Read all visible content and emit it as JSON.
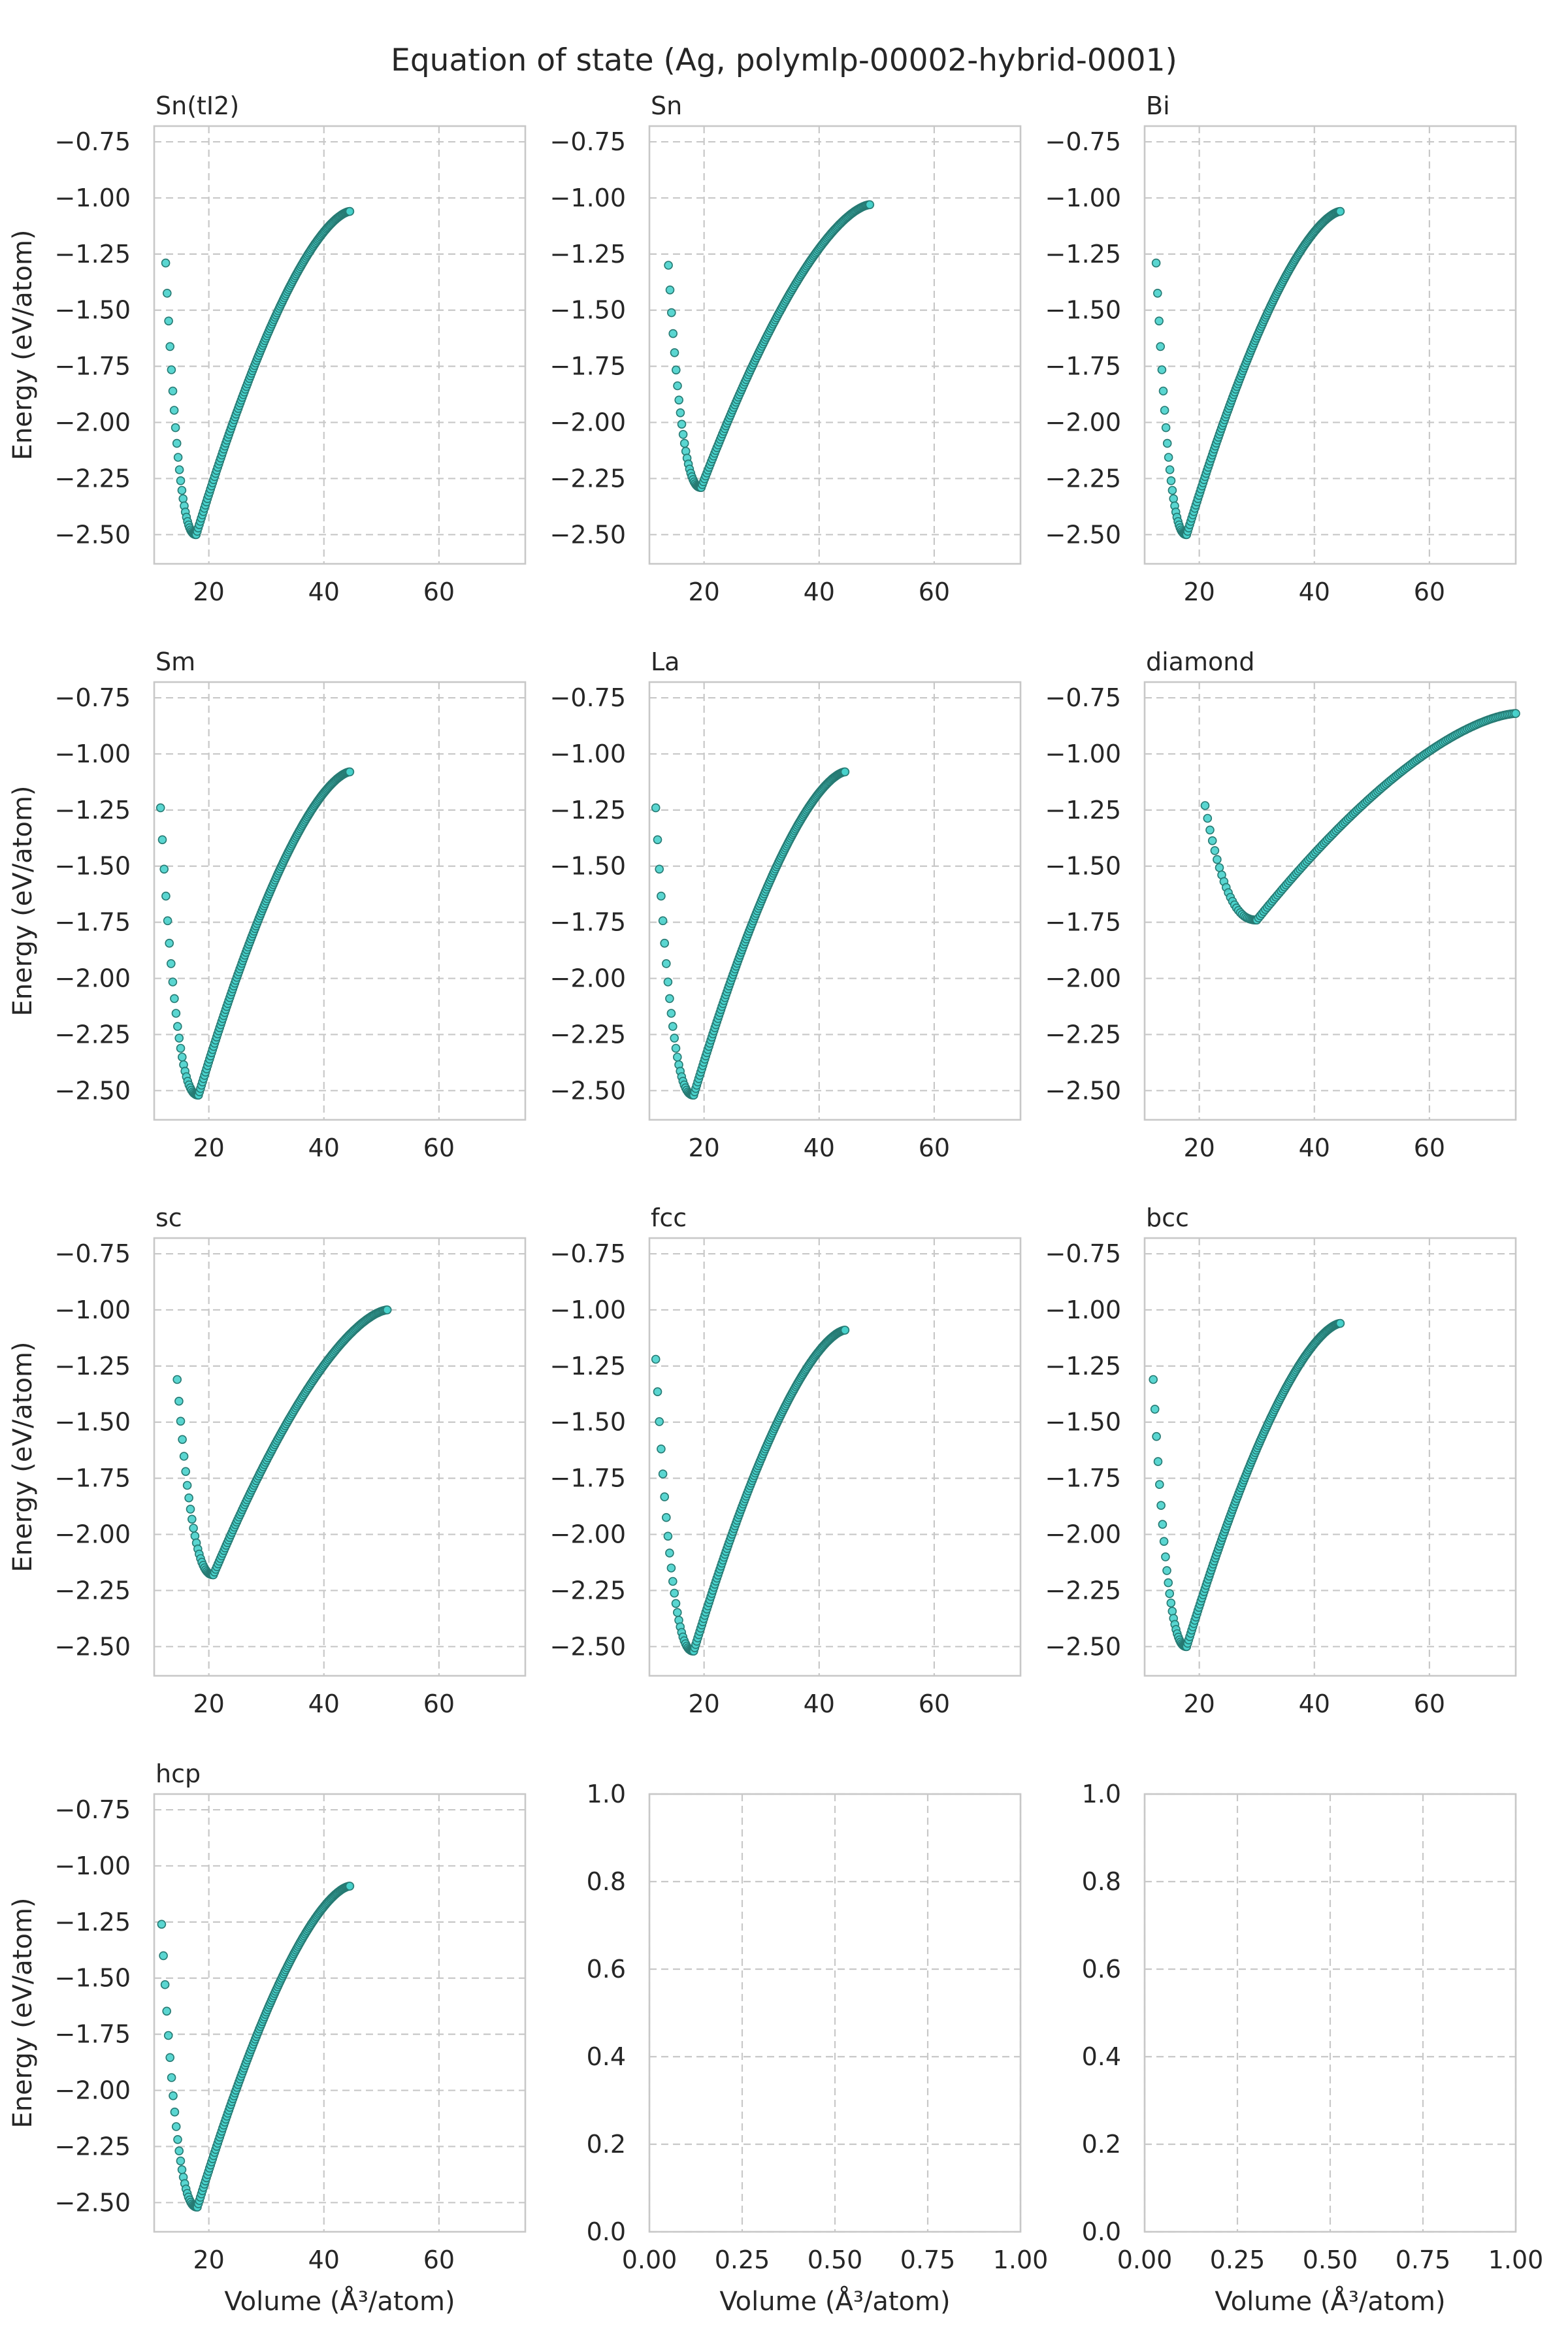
{
  "title": "Equation of state (Ag, polymlp-00002-hybrid-0001)",
  "colors": {
    "marker": "#48d1cc",
    "marker_edge": "#267a73",
    "grid": "#c8c8c8",
    "spine": "#c8c8c8",
    "text": "#262626"
  },
  "chart_data": [
    {
      "type": "scatter",
      "title": "Sn(tI2)",
      "ylabel": "Energy (eV/atom)",
      "xlabel": "",
      "xlim": [
        10.5,
        75
      ],
      "ylim": [
        -2.63,
        -0.68
      ],
      "xticks": [
        "20",
        "40",
        "60"
      ],
      "yticks": [
        "−0.75",
        "−1.00",
        "−1.25",
        "−1.50",
        "−1.75",
        "−2.00",
        "−2.25",
        "−2.50"
      ],
      "grid": true,
      "curve": {
        "v_start": 12.5,
        "v_min": 17.8,
        "v_end": 44.5,
        "e_start": -1.29,
        "e_min": -2.5,
        "e_end": -1.06
      }
    },
    {
      "type": "scatter",
      "title": "Sn",
      "ylabel": "",
      "xlabel": "",
      "xlim": [
        10.5,
        75
      ],
      "ylim": [
        -2.63,
        -0.68
      ],
      "xticks": [
        "20",
        "40",
        "60"
      ],
      "yticks": [
        "−0.75",
        "−1.00",
        "−1.25",
        "−1.50",
        "−1.75",
        "−2.00",
        "−2.25",
        "−2.50"
      ],
      "grid": true,
      "curve": {
        "v_start": 13.8,
        "v_min": 19.5,
        "v_end": 48.8,
        "e_start": -1.3,
        "e_min": -2.29,
        "e_end": -1.03
      }
    },
    {
      "type": "scatter",
      "title": "Bi",
      "ylabel": "",
      "xlabel": "",
      "xlim": [
        10.5,
        75
      ],
      "ylim": [
        -2.63,
        -0.68
      ],
      "xticks": [
        "20",
        "40",
        "60"
      ],
      "yticks": [
        "−0.75",
        "−1.00",
        "−1.25",
        "−1.50",
        "−1.75",
        "−2.00",
        "−2.25",
        "−2.50"
      ],
      "grid": true,
      "curve": {
        "v_start": 12.5,
        "v_min": 17.8,
        "v_end": 44.5,
        "e_start": -1.29,
        "e_min": -2.5,
        "e_end": -1.06
      }
    },
    {
      "type": "scatter",
      "title": "Sm",
      "ylabel": "Energy (eV/atom)",
      "xlabel": "",
      "xlim": [
        10.5,
        75
      ],
      "ylim": [
        -2.63,
        -0.68
      ],
      "xticks": [
        "20",
        "40",
        "60"
      ],
      "yticks": [
        "−0.75",
        "−1.00",
        "−1.25",
        "−1.50",
        "−1.75",
        "−2.00",
        "−2.25",
        "−2.50"
      ],
      "grid": true,
      "curve": {
        "v_start": 11.6,
        "v_min": 18.2,
        "v_end": 44.5,
        "e_start": -1.24,
        "e_min": -2.52,
        "e_end": -1.08
      }
    },
    {
      "type": "scatter",
      "title": "La",
      "ylabel": "",
      "xlabel": "",
      "xlim": [
        10.5,
        75
      ],
      "ylim": [
        -2.63,
        -0.68
      ],
      "xticks": [
        "20",
        "40",
        "60"
      ],
      "yticks": [
        "−0.75",
        "−1.00",
        "−1.25",
        "−1.50",
        "−1.75",
        "−2.00",
        "−2.25",
        "−2.50"
      ],
      "grid": true,
      "curve": {
        "v_start": 11.6,
        "v_min": 18.2,
        "v_end": 44.5,
        "e_start": -1.24,
        "e_min": -2.52,
        "e_end": -1.08
      }
    },
    {
      "type": "scatter",
      "title": "diamond",
      "ylabel": "",
      "xlabel": "",
      "xlim": [
        10.5,
        75
      ],
      "ylim": [
        -2.63,
        -0.68
      ],
      "xticks": [
        "20",
        "40",
        "60"
      ],
      "yticks": [
        "−0.75",
        "−1.00",
        "−1.25",
        "−1.50",
        "−1.75",
        "−2.00",
        "−2.25",
        "−2.50"
      ],
      "grid": true,
      "curve": {
        "v_start": 21.0,
        "v_min": 30.0,
        "v_end": 75.0,
        "e_start": -1.23,
        "e_min": -1.74,
        "e_end": -0.82
      }
    },
    {
      "type": "scatter",
      "title": "sc",
      "ylabel": "Energy (eV/atom)",
      "xlabel": "",
      "xlim": [
        10.5,
        75
      ],
      "ylim": [
        -2.63,
        -0.68
      ],
      "xticks": [
        "20",
        "40",
        "60"
      ],
      "yticks": [
        "−0.75",
        "−1.00",
        "−1.25",
        "−1.50",
        "−1.75",
        "−2.00",
        "−2.25",
        "−2.50"
      ],
      "grid": true,
      "curve": {
        "v_start": 14.5,
        "v_min": 20.8,
        "v_end": 51.0,
        "e_start": -1.31,
        "e_min": -2.18,
        "e_end": -1.0
      }
    },
    {
      "type": "scatter",
      "title": "fcc",
      "ylabel": "",
      "xlabel": "",
      "xlim": [
        10.5,
        75
      ],
      "ylim": [
        -2.63,
        -0.68
      ],
      "xticks": [
        "20",
        "40",
        "60"
      ],
      "yticks": [
        "−0.75",
        "−1.00",
        "−1.25",
        "−1.50",
        "−1.75",
        "−2.00",
        "−2.25",
        "−2.50"
      ],
      "grid": true,
      "curve": {
        "v_start": 11.6,
        "v_min": 18.2,
        "v_end": 44.5,
        "e_start": -1.22,
        "e_min": -2.52,
        "e_end": -1.09
      }
    },
    {
      "type": "scatter",
      "title": "bcc",
      "ylabel": "",
      "xlabel": "",
      "xlim": [
        10.5,
        75
      ],
      "ylim": [
        -2.63,
        -0.68
      ],
      "xticks": [
        "20",
        "40",
        "60"
      ],
      "yticks": [
        "−0.75",
        "−1.00",
        "−1.25",
        "−1.50",
        "−1.75",
        "−2.00",
        "−2.25",
        "−2.50"
      ],
      "grid": true,
      "curve": {
        "v_start": 12.0,
        "v_min": 17.8,
        "v_end": 44.5,
        "e_start": -1.31,
        "e_min": -2.5,
        "e_end": -1.06
      }
    },
    {
      "type": "scatter",
      "title": "hcp",
      "ylabel": "Energy (eV/atom)",
      "xlabel": "Volume (Å³/atom)",
      "xlim": [
        10.5,
        75
      ],
      "ylim": [
        -2.63,
        -0.68
      ],
      "xticks": [
        "20",
        "40",
        "60"
      ],
      "yticks": [
        "−0.75",
        "−1.00",
        "−1.25",
        "−1.50",
        "−1.75",
        "−2.00",
        "−2.25",
        "−2.50"
      ],
      "grid": true,
      "curve": {
        "v_start": 11.8,
        "v_min": 18.0,
        "v_end": 44.5,
        "e_start": -1.26,
        "e_min": -2.52,
        "e_end": -1.09
      }
    },
    {
      "type": "scatter",
      "title": "",
      "ylabel": "",
      "xlabel": "Volume (Å³/atom)",
      "xlim": [
        0,
        1
      ],
      "ylim": [
        0,
        1
      ],
      "xticks": [
        "0.00",
        "0.25",
        "0.50",
        "0.75",
        "1.00"
      ],
      "yticks": [
        "0.0",
        "0.2",
        "0.4",
        "0.6",
        "0.8",
        "1.0"
      ],
      "grid": true,
      "empty": true
    },
    {
      "type": "scatter",
      "title": "",
      "ylabel": "",
      "xlabel": "Volume (Å³/atom)",
      "xlim": [
        0,
        1
      ],
      "ylim": [
        0,
        1
      ],
      "xticks": [
        "0.00",
        "0.25",
        "0.50",
        "0.75",
        "1.00"
      ],
      "yticks": [
        "0.0",
        "0.2",
        "0.4",
        "0.6",
        "0.8",
        "1.0"
      ],
      "grid": true,
      "empty": true
    }
  ]
}
